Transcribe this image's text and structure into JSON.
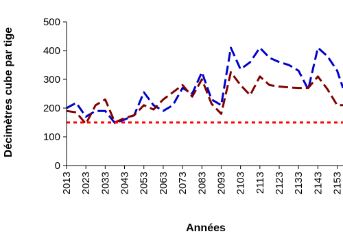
{
  "chart_data": {
    "type": "line",
    "xlabel": "Années",
    "ylabel": "Décimètres cube par tige",
    "ylim": [
      0,
      500
    ],
    "yticks": [
      0,
      100,
      200,
      300,
      400,
      500
    ],
    "xticks": [
      2013,
      2023,
      2033,
      2043,
      2053,
      2063,
      2073,
      2083,
      2093,
      2103,
      2113,
      2123,
      2133,
      2143,
      2153
    ],
    "xlim": [
      2013,
      2153
    ],
    "grid": "none",
    "legend": "none",
    "series": [
      {
        "style": "long-dash",
        "color": "#0000cc",
        "x": [
          2013,
          2018,
          2023,
          2028,
          2033,
          2038,
          2043,
          2048,
          2053,
          2058,
          2063,
          2068,
          2073,
          2078,
          2083,
          2088,
          2093,
          2098,
          2103,
          2108,
          2113,
          2118,
          2123,
          2128,
          2133,
          2138,
          2143,
          2148,
          2153,
          2156
        ],
        "values": [
          200,
          218,
          170,
          190,
          190,
          148,
          160,
          175,
          255,
          210,
          190,
          210,
          270,
          250,
          325,
          230,
          210,
          410,
          335,
          360,
          410,
          375,
          360,
          350,
          330,
          265,
          410,
          380,
          330,
          270
        ]
      },
      {
        "style": "long-dash",
        "color": "#800000",
        "x": [
          2013,
          2018,
          2023,
          2028,
          2033,
          2038,
          2043,
          2048,
          2053,
          2058,
          2063,
          2068,
          2073,
          2078,
          2083,
          2088,
          2093,
          2098,
          2103,
          2108,
          2113,
          2118,
          2123,
          2128,
          2133,
          2138,
          2143,
          2148,
          2153,
          2156
        ],
        "values": [
          190,
          185,
          145,
          210,
          230,
          150,
          165,
          175,
          210,
          195,
          230,
          255,
          280,
          240,
          300,
          215,
          180,
          325,
          280,
          245,
          310,
          280,
          275,
          272,
          270,
          270,
          310,
          265,
          210,
          210
        ]
      },
      {
        "style": "short-dash",
        "color": "#ff0000",
        "x": [
          2013,
          2156
        ],
        "values": [
          150,
          150
        ]
      }
    ]
  }
}
